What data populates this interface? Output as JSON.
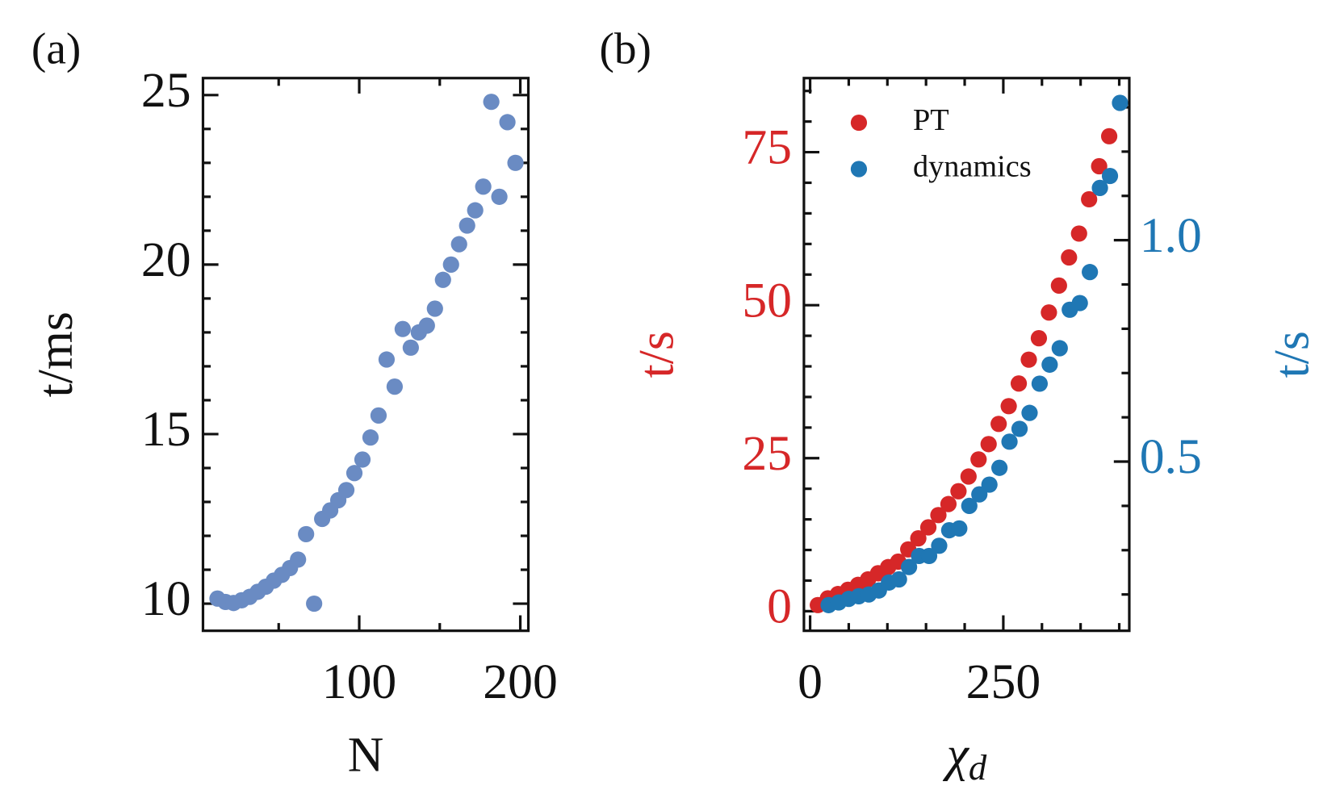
{
  "chart_data": [
    {
      "type": "scatter",
      "panel_label": "(a)",
      "xlabel": "N",
      "ylabel": "t/ms",
      "x": [
        12,
        17,
        22,
        27,
        32,
        37,
        42,
        47,
        52,
        57,
        62,
        67,
        72,
        77,
        82,
        87,
        92,
        97,
        102,
        107,
        112,
        117,
        122,
        127,
        132,
        137,
        142,
        147,
        152,
        157,
        162,
        167,
        172,
        177,
        182,
        187,
        192,
        197
      ],
      "values": [
        10.15,
        10.05,
        10.02,
        10.1,
        10.2,
        10.35,
        10.5,
        10.68,
        10.85,
        11.05,
        11.3,
        12.05,
        10.0,
        12.5,
        12.75,
        13.05,
        13.35,
        13.85,
        14.25,
        14.9,
        15.55,
        17.2,
        16.4,
        18.1,
        17.55,
        18.0,
        18.2,
        18.7,
        19.55,
        20.0,
        20.6,
        21.15,
        21.6,
        22.3,
        24.8,
        22.0,
        24.2,
        23.0
      ],
      "color": "#6a8bc3",
      "xlim": [
        3,
        205
      ],
      "ylim": [
        9.2,
        25.5
      ],
      "xticks": [
        100,
        200
      ],
      "yticks": [
        10,
        15,
        20,
        25
      ],
      "xminor": [
        50,
        150
      ],
      "yminor": [
        11,
        12,
        13,
        14,
        16,
        17,
        18,
        19,
        21,
        22,
        23,
        24
      ]
    },
    {
      "type": "scatter",
      "panel_label": "(b)",
      "xlabel": "χ",
      "xlabel_subscript": "d",
      "ylabel": "t/s",
      "y2label": "t/s",
      "ycolor": "#d62728",
      "y2color": "#1f77b4",
      "legend": "upper left",
      "series": [
        {
          "name": "PT",
          "color": "#d62728",
          "x": [
            10,
            23,
            36,
            49,
            62,
            75,
            88,
            101,
            114,
            127,
            140,
            153,
            166,
            179,
            192,
            205,
            218,
            231,
            244,
            257,
            270,
            283,
            296,
            309,
            322,
            335,
            348,
            361,
            374,
            387
          ],
          "values": [
            1.0,
            2.1,
            2.8,
            3.5,
            4.3,
            5.2,
            6.2,
            7.2,
            8.1,
            10.1,
            11.9,
            13.7,
            15.7,
            17.5,
            19.6,
            22.0,
            24.8,
            27.3,
            30.6,
            33.5,
            37.2,
            41.1,
            44.6,
            48.8,
            53.2,
            57.8,
            61.7,
            67.3,
            72.7,
            77.6
          ]
        },
        {
          "name": "dynamics",
          "color": "#1f77b4",
          "axis": "y2",
          "x": [
            24,
            37,
            50,
            63,
            76,
            89,
            102,
            115,
            128,
            141,
            154,
            167,
            180,
            193,
            206,
            219,
            232,
            245,
            258,
            271,
            284,
            297,
            310,
            323,
            336,
            349,
            362,
            375,
            388,
            401
          ],
          "values": [
            0.176,
            0.182,
            0.19,
            0.196,
            0.2,
            0.209,
            0.227,
            0.234,
            0.262,
            0.287,
            0.287,
            0.31,
            0.345,
            0.349,
            0.4,
            0.426,
            0.448,
            0.486,
            0.545,
            0.574,
            0.61,
            0.676,
            0.719,
            0.756,
            0.843,
            0.858,
            0.928,
            1.118,
            1.145,
            1.31
          ]
        }
      ],
      "xlim": [
        -8,
        413
      ],
      "ylim": [
        -3.2,
        87.1
      ],
      "y2lim": [
        0.118,
        1.366
      ],
      "xticks": [
        0,
        250
      ],
      "yticks": [
        0,
        25,
        50,
        75
      ],
      "y2ticks": [
        0.5,
        {
          "value": 1,
          "label": "1.0"
        }
      ],
      "xminor": [
        50,
        100,
        150,
        200,
        300,
        350,
        400
      ],
      "yminor": [
        5,
        10,
        15,
        20,
        30,
        35,
        40,
        45,
        55,
        60,
        65,
        70,
        80,
        85
      ],
      "y2minor": [
        0.2,
        0.3,
        0.4,
        0.6,
        0.7,
        0.8,
        0.9,
        1.1,
        1.2,
        1.3
      ]
    }
  ]
}
